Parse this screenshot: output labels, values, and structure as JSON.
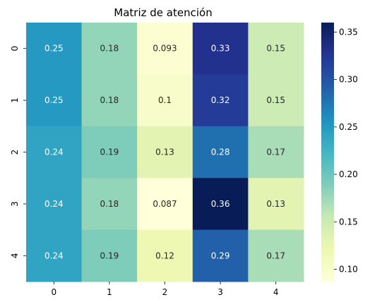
{
  "chart_data": {
    "type": "heatmap",
    "title": "Matriz de atención",
    "xlabel": "",
    "ylabel": "",
    "x_categories": [
      "0",
      "1",
      "2",
      "3",
      "4"
    ],
    "y_categories": [
      "0",
      "1",
      "2",
      "3",
      "4"
    ],
    "values": [
      [
        0.25,
        0.18,
        0.093,
        0.33,
        0.15
      ],
      [
        0.25,
        0.18,
        0.1,
        0.32,
        0.15
      ],
      [
        0.24,
        0.19,
        0.13,
        0.28,
        0.17
      ],
      [
        0.24,
        0.18,
        0.087,
        0.36,
        0.13
      ],
      [
        0.24,
        0.19,
        0.12,
        0.29,
        0.17
      ]
    ],
    "value_labels": [
      [
        "0.25",
        "0.18",
        "0.093",
        "0.33",
        "0.15"
      ],
      [
        "0.25",
        "0.18",
        "0.1",
        "0.32",
        "0.15"
      ],
      [
        "0.24",
        "0.19",
        "0.13",
        "0.28",
        "0.17"
      ],
      [
        "0.24",
        "0.18",
        "0.087",
        "0.36",
        "0.13"
      ],
      [
        "0.24",
        "0.19",
        "0.12",
        "0.29",
        "0.17"
      ]
    ],
    "colormap": "YlGnBu",
    "colorbar": {
      "range": [
        0.087,
        0.36
      ],
      "ticks": [
        0.1,
        0.15,
        0.2,
        0.25,
        0.3,
        0.35
      ],
      "tick_labels": [
        "0.10",
        "0.15",
        "0.20",
        "0.25",
        "0.30",
        "0.35"
      ]
    },
    "colormap_stops": [
      "#ffffd9",
      "#edf8b1",
      "#c7e9b4",
      "#7fcdbb",
      "#41b6c4",
      "#1d91c0",
      "#225ea8",
      "#253494",
      "#081d58"
    ],
    "annotation_colors": {
      "light_text": "#ffffff",
      "dark_text": "#262626"
    }
  }
}
